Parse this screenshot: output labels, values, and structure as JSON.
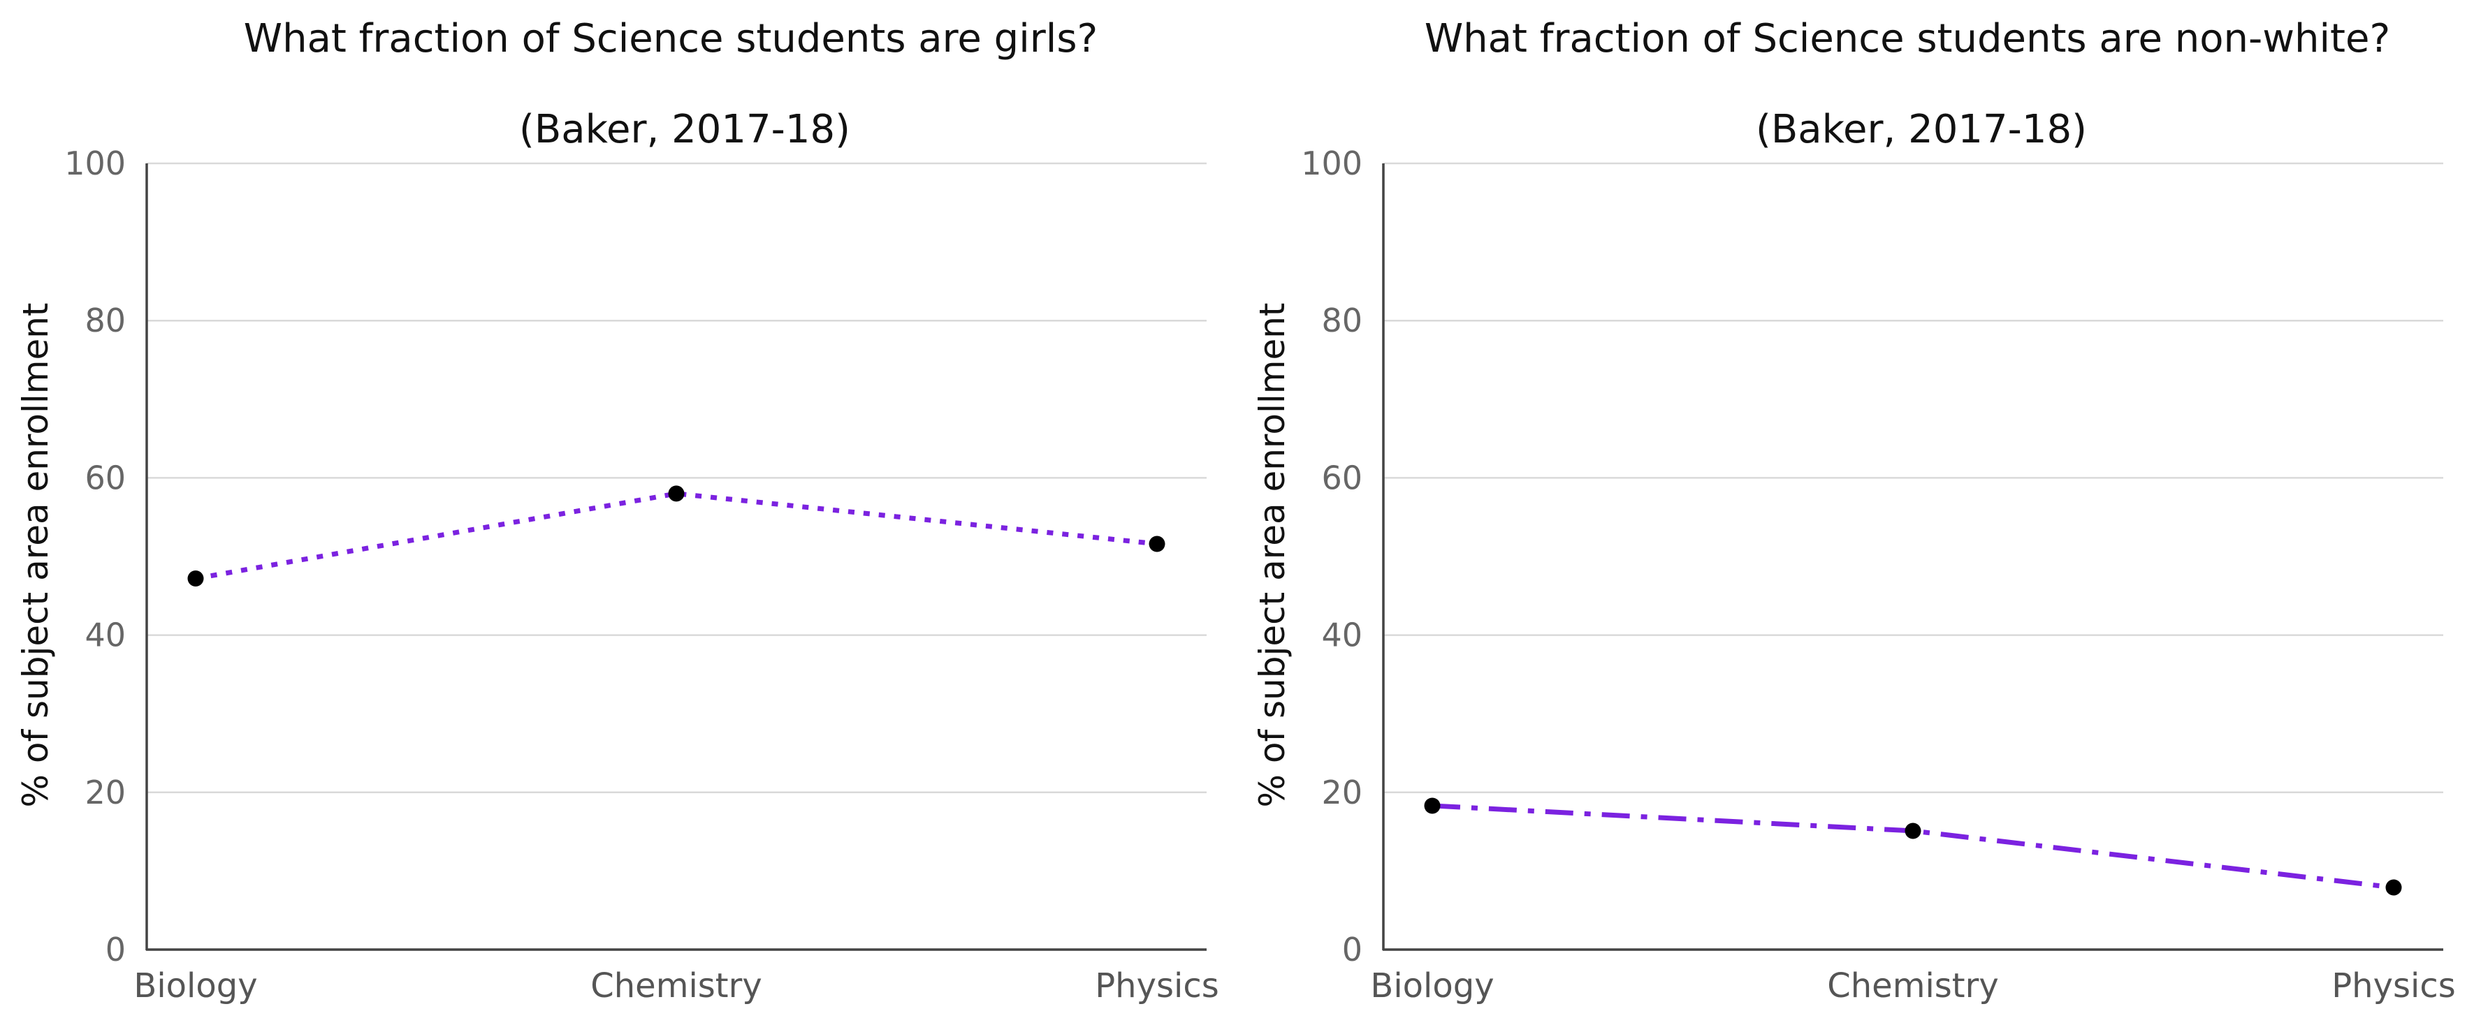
{
  "chart_data": [
    {
      "type": "line",
      "title": "What fraction of Science students are girls?",
      "subtitle": "(Baker, 2017-18)",
      "ylabel": "% of subject area enrollment",
      "xlabel": "",
      "categories": [
        "Biology",
        "Chemistry",
        "Physics"
      ],
      "series": [
        {
          "values": [
            47.2,
            58.0,
            51.6
          ],
          "color": "#7b22e0",
          "line_style": "dotted"
        }
      ],
      "ylim": [
        0,
        100
      ],
      "yticks": [
        "0",
        "20",
        "40",
        "60",
        "80",
        "100"
      ],
      "grid": "horizontal",
      "marker_color": "#000000"
    },
    {
      "type": "line",
      "title": "What fraction of Science students are non-white?",
      "subtitle": "(Baker, 2017-18)",
      "ylabel": "% of subject area enrollment",
      "xlabel": "",
      "categories": [
        "Biology",
        "Chemistry",
        "Physics"
      ],
      "series": [
        {
          "values": [
            18.3,
            15.1,
            7.9
          ],
          "color": "#7b22e0",
          "line_style": "dash-dot"
        }
      ],
      "ylim": [
        0,
        100
      ],
      "yticks": [
        "0",
        "20",
        "40",
        "60",
        "80",
        "100"
      ],
      "grid": "horizontal",
      "marker_color": "#000000"
    }
  ]
}
